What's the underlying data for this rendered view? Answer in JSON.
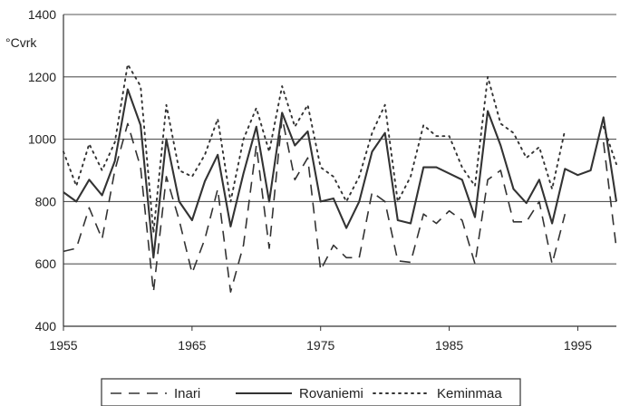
{
  "chart_data": {
    "type": "line",
    "ylabel": "°Cvrk",
    "ylim": [
      400,
      1400
    ],
    "yticks": [
      400,
      600,
      800,
      1000,
      1200,
      1400
    ],
    "xlim": [
      1955,
      1998
    ],
    "xticks": [
      1955,
      1965,
      1975,
      1985,
      1995
    ],
    "grid": "horizontal",
    "legend_position": "bottom",
    "x": [
      1955,
      1956,
      1957,
      1958,
      1959,
      1960,
      1961,
      1962,
      1963,
      1964,
      1965,
      1966,
      1967,
      1968,
      1969,
      1970,
      1971,
      1972,
      1973,
      1974,
      1975,
      1976,
      1977,
      1978,
      1979,
      1980,
      1981,
      1982,
      1983,
      1984,
      1985,
      1986,
      1987,
      1988,
      1989,
      1990,
      1991,
      1992,
      1993,
      1994,
      1995,
      1996,
      1997,
      1998
    ],
    "series": [
      {
        "name": "Inari",
        "style": "dashed",
        "color": "#333333",
        "values": [
          640,
          650,
          780,
          680,
          900,
          1050,
          910,
          510,
          880,
          740,
          570,
          680,
          840,
          510,
          660,
          980,
          650,
          1070,
          870,
          940,
          580,
          660,
          620,
          620,
          830,
          800,
          610,
          605,
          760,
          730,
          770,
          740,
          600,
          870,
          900,
          735,
          735,
          800,
          600,
          760,
          null,
          null,
          990,
          650
        ]
      },
      {
        "name": "Rovaniemi",
        "style": "solid",
        "color": "#333333",
        "values": [
          830,
          800,
          870,
          820,
          930,
          1160,
          1045,
          620,
          1000,
          800,
          740,
          865,
          950,
          720,
          890,
          1040,
          800,
          1085,
          980,
          1025,
          800,
          810,
          715,
          800,
          960,
          1020,
          740,
          730,
          910,
          910,
          890,
          870,
          750,
          1090,
          980,
          840,
          795,
          870,
          730,
          905,
          885,
          900,
          1070,
          800
        ]
      },
      {
        "name": "Keminmaa",
        "style": "dotted",
        "color": "#333333",
        "values": [
          960,
          850,
          985,
          900,
          990,
          1240,
          1170,
          700,
          1110,
          900,
          880,
          950,
          1065,
          800,
          1000,
          1100,
          960,
          1170,
          1040,
          1110,
          910,
          880,
          800,
          880,
          1020,
          1110,
          800,
          880,
          1045,
          1010,
          1010,
          910,
          850,
          1200,
          1050,
          1020,
          940,
          975,
          840,
          1030,
          null,
          null,
          1040,
          920
        ]
      }
    ]
  }
}
